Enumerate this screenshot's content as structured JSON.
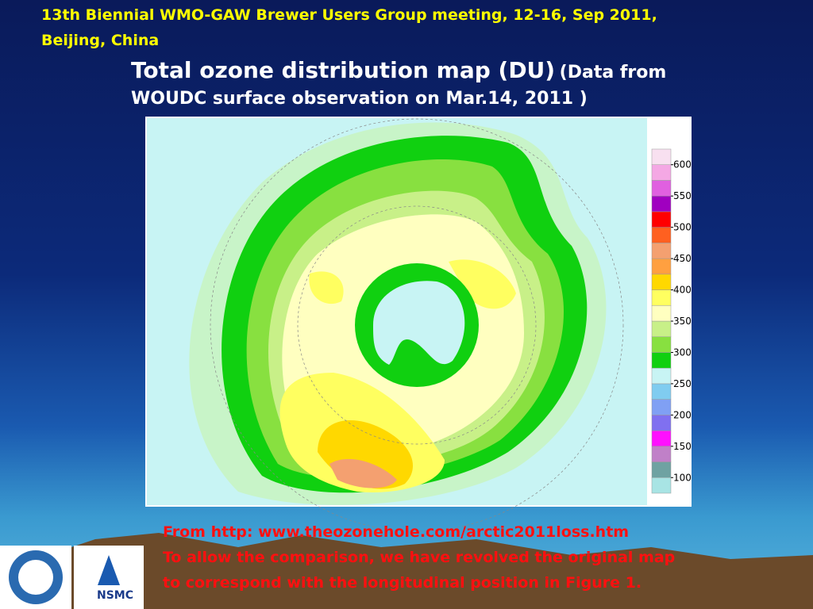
{
  "header": {
    "lines": [
      "13th Biennial WMO-GAW Brewer Users Group meeting, 12-16, Sep 2011,",
      "Beijing, China"
    ]
  },
  "title": {
    "main": "Total ozone distribution map (DU)",
    "note_line1": "(Data from",
    "note_line2": "WOUDC surface observation on Mar.14, 2011 )"
  },
  "colorbar": {
    "lim": [
      75,
      625
    ],
    "ticks": [
      100,
      150,
      200,
      250,
      300,
      350,
      400,
      450,
      500,
      550,
      600
    ],
    "colors": [
      "#a8e4e4",
      "#6fa2a2",
      "#c080c8",
      "#ff10ff",
      "#8070f0",
      "#80a0f4",
      "#80ccf0",
      "#c8f4f4",
      "#10d010",
      "#88e040",
      "#c8f088",
      "#ffffc0",
      "#ffff60",
      "#ffd800",
      "#ffa040",
      "#f4a070",
      "#ff6020",
      "#ff0000",
      "#a000c0",
      "#e060e0",
      "#f4a8e4",
      "#f8e0f0"
    ]
  },
  "logos": {
    "nsmc": "NSMC"
  },
  "source": {
    "lines": [
      "From http: www.theozonehole.com/arctic2011loss.htm",
      "To allow the comparison, we have revolved the original map",
      "to correspond with the longitudinal position in Figure 1."
    ]
  }
}
